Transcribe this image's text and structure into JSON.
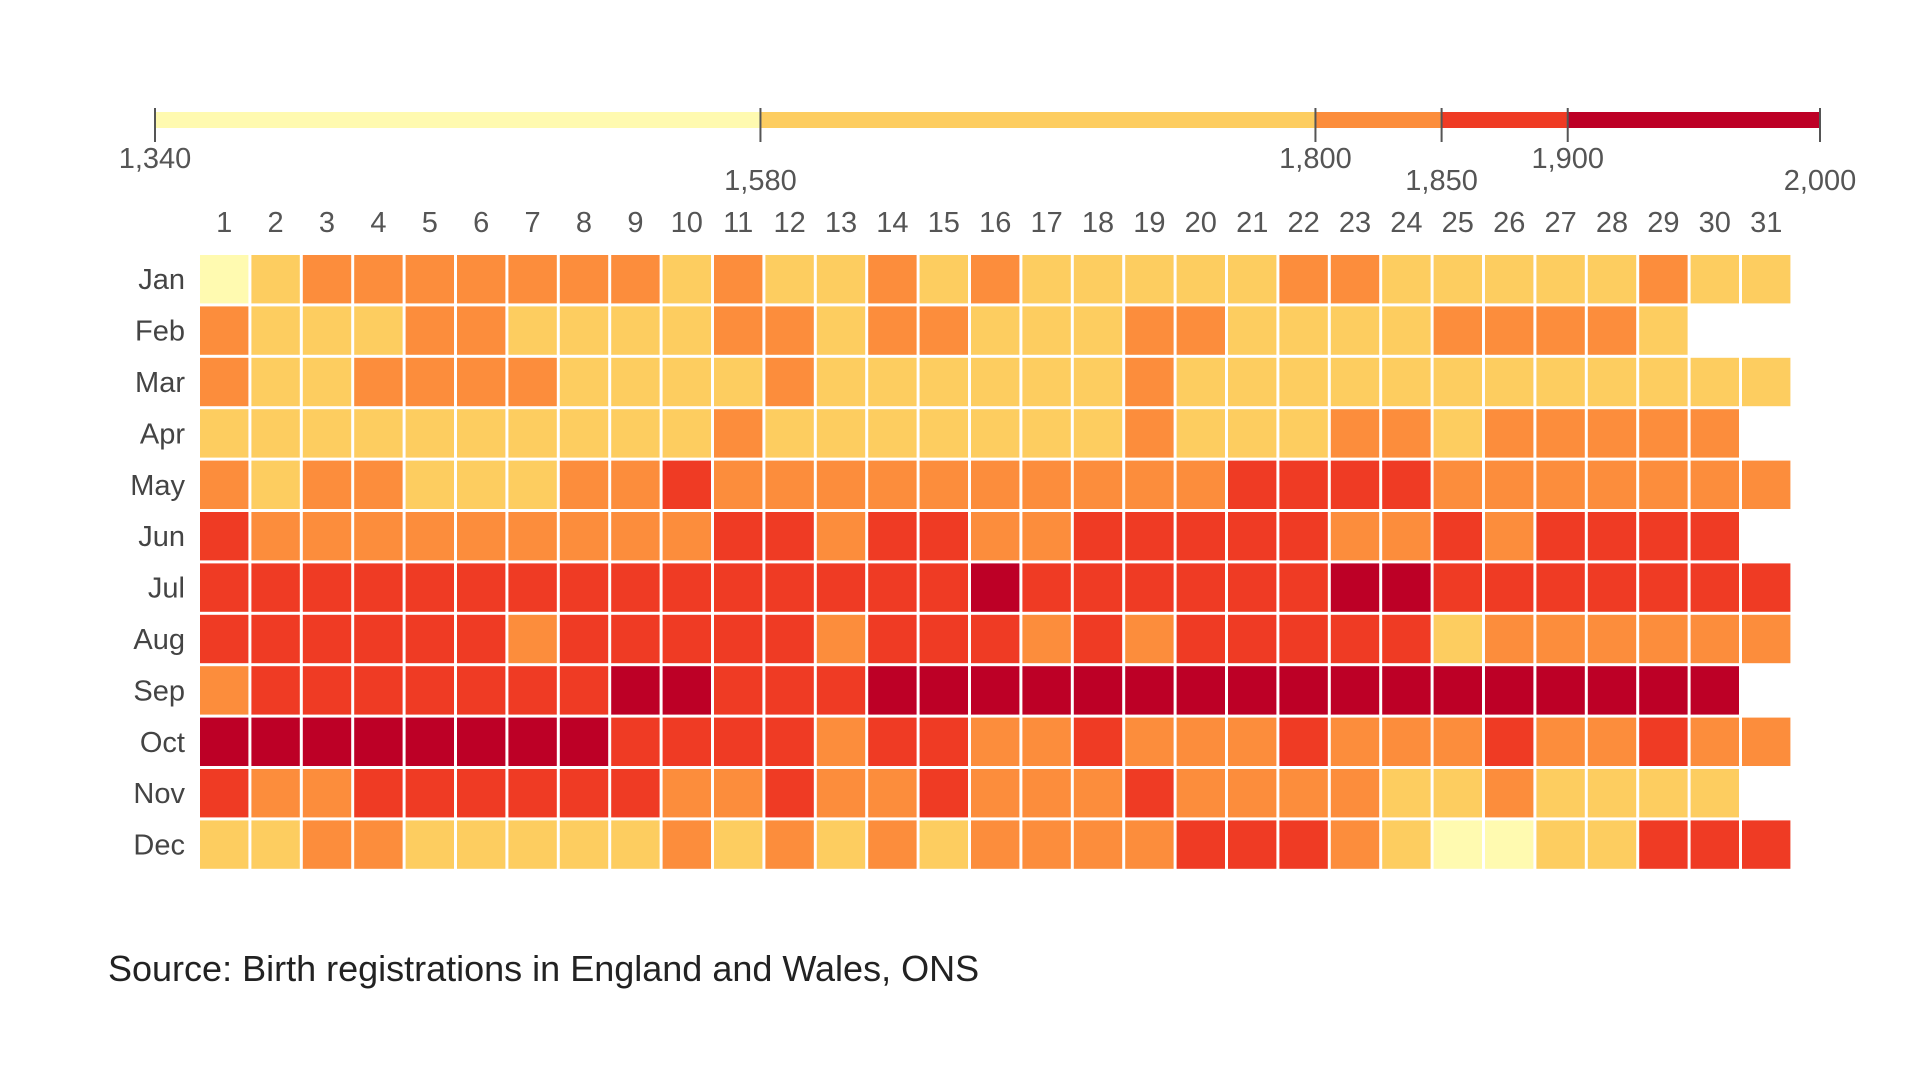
{
  "chart_data": {
    "type": "heatmap",
    "title": "",
    "xlabel": "",
    "ylabel": "",
    "source": "Source: Birth registrations in England and Wales, ONS",
    "x_categories": [
      "1",
      "2",
      "3",
      "4",
      "5",
      "6",
      "7",
      "8",
      "9",
      "10",
      "11",
      "12",
      "13",
      "14",
      "15",
      "16",
      "17",
      "18",
      "19",
      "20",
      "21",
      "22",
      "23",
      "24",
      "25",
      "26",
      "27",
      "28",
      "29",
      "30",
      "31"
    ],
    "y_categories": [
      "Jan",
      "Feb",
      "Mar",
      "Apr",
      "May",
      "Jun",
      "Jul",
      "Aug",
      "Sep",
      "Oct",
      "Nov",
      "Dec"
    ],
    "color_scale": {
      "range": [
        1340,
        2000
      ],
      "breaks": [
        {
          "from": 1340,
          "to": 1580,
          "color": "#FFFAB0"
        },
        {
          "from": 1580,
          "to": 1800,
          "color": "#FDCD60"
        },
        {
          "from": 1800,
          "to": 1850,
          "color": "#FC8D3C"
        },
        {
          "from": 1850,
          "to": 1900,
          "color": "#EF3B24"
        },
        {
          "from": 1900,
          "to": 2000,
          "color": "#BD0026"
        }
      ],
      "tick_labels": [
        "1,340",
        "1,580",
        "1,800",
        "1,850",
        "1,900",
        "2,000"
      ],
      "tick_values": [
        1340,
        1580,
        1800,
        1850,
        1900,
        2000
      ]
    },
    "bins": [
      [
        0,
        1,
        2,
        2,
        2,
        2,
        2,
        2,
        2,
        1,
        2,
        1,
        1,
        2,
        1,
        2,
        1,
        1,
        1,
        1,
        1,
        2,
        2,
        1,
        1,
        1,
        1,
        1,
        2,
        1,
        1
      ],
      [
        2,
        1,
        1,
        1,
        2,
        2,
        1,
        1,
        1,
        1,
        2,
        2,
        1,
        2,
        2,
        1,
        1,
        1,
        2,
        2,
        1,
        1,
        1,
        1,
        2,
        2,
        2,
        2,
        1,
        null,
        null
      ],
      [
        2,
        1,
        1,
        2,
        2,
        2,
        2,
        1,
        1,
        1,
        1,
        2,
        1,
        1,
        1,
        1,
        1,
        1,
        2,
        1,
        1,
        1,
        1,
        1,
        1,
        1,
        1,
        1,
        1,
        1,
        1
      ],
      [
        1,
        1,
        1,
        1,
        1,
        1,
        1,
        1,
        1,
        1,
        2,
        1,
        1,
        1,
        1,
        1,
        1,
        1,
        2,
        1,
        1,
        1,
        2,
        2,
        1,
        2,
        2,
        2,
        2,
        2,
        null
      ],
      [
        2,
        1,
        2,
        2,
        1,
        1,
        1,
        2,
        2,
        3,
        2,
        2,
        2,
        2,
        2,
        2,
        2,
        2,
        2,
        2,
        3,
        3,
        3,
        3,
        2,
        2,
        2,
        2,
        2,
        2,
        2
      ],
      [
        3,
        2,
        2,
        2,
        2,
        2,
        2,
        2,
        2,
        2,
        3,
        3,
        2,
        3,
        3,
        2,
        2,
        3,
        3,
        3,
        3,
        3,
        2,
        2,
        3,
        2,
        3,
        3,
        3,
        3,
        null
      ],
      [
        3,
        3,
        3,
        3,
        3,
        3,
        3,
        3,
        3,
        3,
        3,
        3,
        3,
        3,
        3,
        4,
        3,
        3,
        3,
        3,
        3,
        3,
        4,
        4,
        3,
        3,
        3,
        3,
        3,
        3,
        3
      ],
      [
        3,
        3,
        3,
        3,
        3,
        3,
        2,
        3,
        3,
        3,
        3,
        3,
        2,
        3,
        3,
        3,
        2,
        3,
        2,
        3,
        3,
        3,
        3,
        3,
        1,
        2,
        2,
        2,
        2,
        2,
        2
      ],
      [
        2,
        3,
        3,
        3,
        3,
        3,
        3,
        3,
        4,
        4,
        3,
        3,
        3,
        4,
        4,
        4,
        4,
        4,
        4,
        4,
        4,
        4,
        4,
        4,
        4,
        4,
        4,
        4,
        4,
        4,
        null
      ],
      [
        4,
        4,
        4,
        4,
        4,
        4,
        4,
        4,
        3,
        3,
        3,
        3,
        2,
        3,
        3,
        2,
        2,
        3,
        2,
        2,
        2,
        3,
        2,
        2,
        2,
        3,
        2,
        2,
        3,
        2,
        2
      ],
      [
        3,
        2,
        2,
        3,
        3,
        3,
        3,
        3,
        3,
        2,
        2,
        3,
        2,
        2,
        3,
        2,
        2,
        2,
        3,
        2,
        2,
        2,
        2,
        1,
        1,
        2,
        1,
        1,
        1,
        1,
        null
      ],
      [
        1,
        1,
        2,
        2,
        1,
        1,
        1,
        1,
        1,
        2,
        1,
        2,
        1,
        2,
        1,
        2,
        2,
        2,
        2,
        3,
        3,
        3,
        2,
        1,
        0,
        0,
        1,
        1,
        3,
        3,
        3
      ]
    ]
  }
}
